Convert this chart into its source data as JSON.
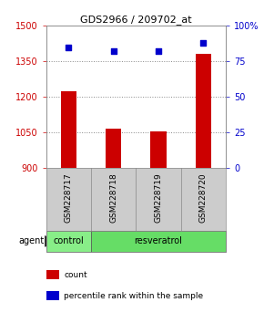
{
  "title": "GDS2966 / 209702_at",
  "samples": [
    "GSM228717",
    "GSM228718",
    "GSM228719",
    "GSM228720"
  ],
  "counts": [
    1225,
    1065,
    1055,
    1380
  ],
  "percentiles": [
    85,
    82,
    82,
    88
  ],
  "ylim_left": [
    900,
    1500
  ],
  "ylim_right": [
    0,
    100
  ],
  "yticks_left": [
    900,
    1050,
    1200,
    1350,
    1500
  ],
  "yticks_right": [
    0,
    25,
    50,
    75,
    100
  ],
  "ytick_labels_right": [
    "0",
    "25",
    "50",
    "75",
    "100%"
  ],
  "bar_color": "#cc0000",
  "dot_color": "#0000cc",
  "bar_width": 0.35,
  "agent_groups": [
    {
      "label": "control",
      "color": "#88ee88"
    },
    {
      "label": "resveratrol",
      "color": "#66dd66"
    }
  ],
  "agent_label": "agent",
  "legend_items": [
    {
      "label": "count",
      "color": "#cc0000"
    },
    {
      "label": "percentile rank within the sample",
      "color": "#0000cc"
    }
  ],
  "grid_color": "#888888",
  "background_color": "#ffffff",
  "sample_box_color": "#cccccc",
  "left_tick_color": "#cc0000",
  "right_tick_color": "#0000cc"
}
